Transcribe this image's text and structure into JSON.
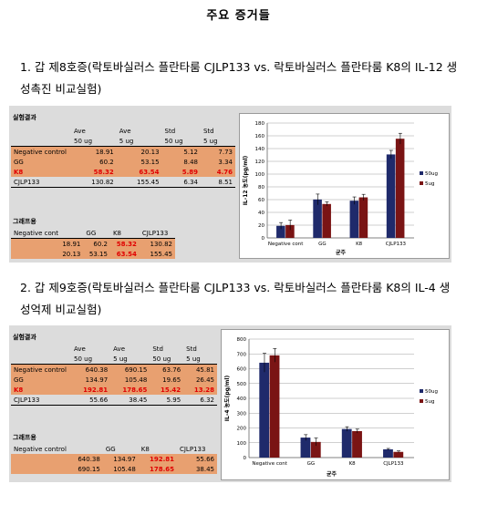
{
  "title": "주요 증거들",
  "sections": [
    {
      "heading": "1. 갑 제8호증(락토바실러스 플란타룸 CJLP133 vs. 락토바실러스 플란타룸 K8의 IL-12 생성촉진 비교실험)",
      "results_label": "실험결과",
      "header_row1": [
        "",
        "Ave",
        "Ave",
        "Std",
        "Std"
      ],
      "header_row2": [
        "",
        "50 ug",
        "5 ug",
        "50 ug",
        "5 ug"
      ],
      "rows": [
        {
          "label": "Negative control",
          "values": [
            "18.91",
            "20.13",
            "5.12",
            "7.73"
          ]
        },
        {
          "label": "GG",
          "values": [
            "60.2",
            "53.15",
            "8.48",
            "3.34"
          ]
        },
        {
          "label": "K8",
          "values": [
            "58.32",
            "63.54",
            "5.89",
            "4.76"
          ]
        },
        {
          "label": "CJLP133",
          "values": [
            "130.82",
            "155.45",
            "6.34",
            "8.51"
          ]
        }
      ],
      "graph_label": "그래프용",
      "graph_header": [
        "Negative cont",
        "GG",
        "K8",
        "CJLP133"
      ],
      "graph_rows": [
        [
          "18.91",
          "60.2",
          "58.32",
          "130.82"
        ],
        [
          "20.13",
          "53.15",
          "63.54",
          "155.45"
        ]
      ]
    },
    {
      "heading": "2. 갑 제9호증(락토바실러스 플란타룸 CJLP133 vs. 락토바실러스 플란타룸 K8의 IL-4 생성억제 비교실험)",
      "results_label": "실험결과",
      "header_row1": [
        "",
        "Ave",
        "Ave",
        "Std",
        "Std"
      ],
      "header_row2": [
        "",
        "50 ug",
        "5 ug",
        "50 ug",
        "5 ug"
      ],
      "rows": [
        {
          "label": "Negative control",
          "values": [
            "640.38",
            "690.15",
            "63.76",
            "45.81"
          ]
        },
        {
          "label": "GG",
          "values": [
            "134.97",
            "105.48",
            "19.65",
            "26.45"
          ]
        },
        {
          "label": "K8",
          "values": [
            "192.81",
            "178.65",
            "15.42",
            "13.28"
          ]
        },
        {
          "label": "CJLP133",
          "values": [
            "55.66",
            "38.45",
            "5.95",
            "6.32"
          ]
        }
      ],
      "graph_label": "그래프용",
      "graph_header": [
        "Negative control",
        "GG",
        "K8",
        "CJLP133"
      ],
      "graph_rows": [
        [
          "640.38",
          "134.97",
          "192.81",
          "55.66"
        ],
        [
          "690.15",
          "105.48",
          "178.65",
          "38.45"
        ]
      ]
    }
  ],
  "chart_data": [
    {
      "type": "bar",
      "categories": [
        "Negative cont",
        "GG",
        "K8",
        "CJLP133"
      ],
      "series": [
        {
          "name": "50ug",
          "values": [
            18.91,
            60.2,
            58.32,
            130.82
          ],
          "errors": [
            5.12,
            8.48,
            5.89,
            6.34
          ],
          "color": "#1f2a6b"
        },
        {
          "name": "5ug",
          "values": [
            20.13,
            53.15,
            63.54,
            155.45
          ],
          "errors": [
            7.73,
            3.34,
            4.76,
            8.51
          ],
          "color": "#7a1414"
        }
      ],
      "xlabel": "균주",
      "ylabel": "IL-12 농도(pg/ml)",
      "ylim": [
        0,
        180
      ],
      "yticks": [
        "0",
        "20",
        "40",
        "60",
        "80",
        "100",
        "120",
        "140",
        "160",
        "180"
      ],
      "grid": true,
      "legend": "right"
    },
    {
      "type": "bar",
      "categories": [
        "Negative cont",
        "GG",
        "K8",
        "CJLP133"
      ],
      "series": [
        {
          "name": "50ug",
          "values": [
            640.38,
            134.97,
            192.81,
            55.66
          ],
          "errors": [
            63.76,
            19.65,
            15.42,
            5.95
          ],
          "color": "#1f2a6b"
        },
        {
          "name": "5ug",
          "values": [
            690.15,
            105.48,
            178.65,
            38.45
          ],
          "errors": [
            45.81,
            26.45,
            13.28,
            6.32
          ],
          "color": "#7a1414"
        }
      ],
      "xlabel": "균주",
      "ylabel": "IL-4 농도(pg/ml)",
      "ylim": [
        0,
        800
      ],
      "yticks": [
        "0",
        "100",
        "200",
        "300",
        "400",
        "500",
        "600",
        "700",
        "800"
      ],
      "grid": true,
      "legend": "right"
    }
  ]
}
